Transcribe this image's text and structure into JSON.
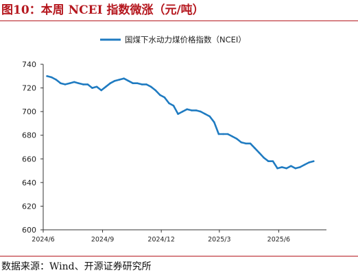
{
  "figure": {
    "title": "图10：本周 NCEI 指数微涨（元/吨）",
    "source": "数据来源：Wind、开源证券研究所"
  },
  "chart_data": {
    "type": "line",
    "title": "",
    "xlabel": "",
    "ylabel": "",
    "ylim": [
      600,
      740
    ],
    "yticks": [
      600,
      620,
      640,
      660,
      680,
      700,
      720,
      740
    ],
    "xticks": [
      "2024/6",
      "2024/9",
      "2024/12",
      "2025/3",
      "2025/6"
    ],
    "grid": false,
    "legend_position": "top",
    "colors": {
      "series": "#1f7bc1",
      "axis": "#333333"
    },
    "series": [
      {
        "name": "国煤下水动力煤价格指数（NCEI）",
        "x": [
          "2024/6/7",
          "2024/6/14",
          "2024/6/21",
          "2024/6/28",
          "2024/7/5",
          "2024/7/12",
          "2024/7/19",
          "2024/7/26",
          "2024/8/2",
          "2024/8/9",
          "2024/8/16",
          "2024/8/23",
          "2024/8/30",
          "2024/9/6",
          "2024/9/13",
          "2024/9/20",
          "2024/9/27",
          "2024/10/4",
          "2024/10/11",
          "2024/10/18",
          "2024/10/25",
          "2024/11/1",
          "2024/11/8",
          "2024/11/15",
          "2024/11/22",
          "2024/11/29",
          "2024/12/6",
          "2024/12/13",
          "2024/12/20",
          "2024/12/27",
          "2025/1/3",
          "2025/1/10",
          "2025/1/17",
          "2025/1/24",
          "2025/1/31",
          "2025/2/7",
          "2025/2/14",
          "2025/2/21",
          "2025/2/28",
          "2025/3/7",
          "2025/3/14",
          "2025/3/21",
          "2025/3/28",
          "2025/4/4",
          "2025/4/11",
          "2025/4/18",
          "2025/4/25",
          "2025/5/2",
          "2025/5/9",
          "2025/5/16",
          "2025/5/23",
          "2025/5/30",
          "2025/6/6",
          "2025/6/13",
          "2025/6/20",
          "2025/6/27",
          "2025/7/4",
          "2025/7/11",
          "2025/7/18",
          "2025/7/25"
        ],
        "values": [
          730,
          729,
          727,
          724,
          723,
          724,
          725,
          724,
          723,
          723,
          720,
          721,
          718,
          721,
          724,
          726,
          727,
          728,
          726,
          724,
          724,
          723,
          723,
          721,
          718,
          714,
          712,
          707,
          705,
          698,
          700,
          702,
          701,
          701,
          700,
          698,
          696,
          691,
          681,
          681,
          681,
          679,
          677,
          674,
          673,
          673,
          669,
          665,
          661,
          658,
          658,
          652,
          653,
          652,
          654,
          652,
          653,
          655,
          657,
          658
        ]
      }
    ]
  }
}
